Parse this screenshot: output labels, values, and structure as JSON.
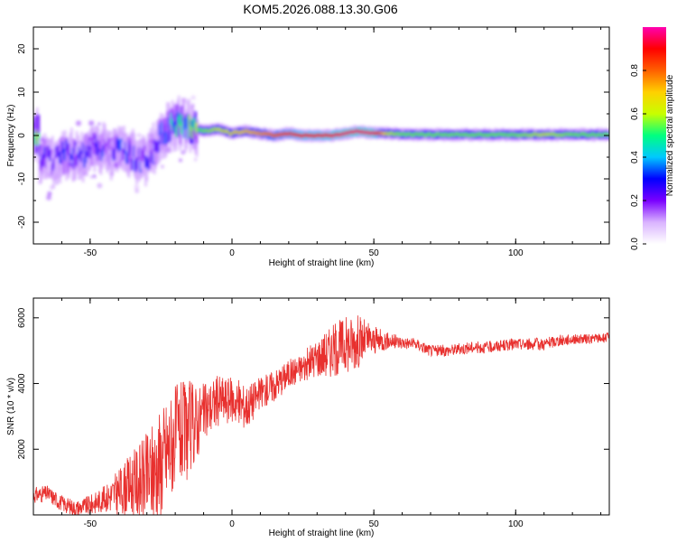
{
  "title": "KOM5.2026.088.13.30.G06",
  "colors": {
    "snr_line": "#e8302e",
    "axis": "#000000",
    "background": "#ffffff"
  },
  "chart_data": [
    {
      "type": "heatmap",
      "title": "KOM5.2026.088.13.30.G06",
      "xlabel": "Height of straight line (km)",
      "ylabel": "Frequency (Hz)",
      "xlim": [
        -70,
        133
      ],
      "ylim": [
        -25,
        25
      ],
      "xticks": [
        -50,
        0,
        50,
        100
      ],
      "yticks": [
        -20,
        -10,
        0,
        10,
        20
      ],
      "colorbar": {
        "label": "Normalized spectral amplitude",
        "range": [
          0,
          1
        ],
        "ticks": [
          0.0,
          0.2,
          0.4,
          0.6,
          0.8
        ],
        "colormap": [
          "#ffffff",
          "#d9b3ff",
          "#7a00ff",
          "#0000ff",
          "#00c8ff",
          "#00ff80",
          "#c8ff00",
          "#ffd000",
          "#ff6000",
          "#ff0000",
          "#ff00b0"
        ]
      },
      "ridge": {
        "height_km": [
          -68,
          -63,
          -58,
          -53,
          -48,
          -43,
          -38,
          -33,
          -29,
          -25,
          -20,
          -15,
          -10,
          -5,
          0,
          5,
          10,
          15,
          20,
          25,
          30,
          35,
          40,
          45,
          50,
          55,
          60,
          70,
          80,
          90,
          100,
          110,
          120,
          133
        ],
        "frequency_hz": [
          -5,
          -6,
          -4,
          -5,
          -2,
          -4,
          -3,
          -6,
          -5,
          0,
          3,
          2,
          1,
          1.5,
          0.5,
          1,
          0.5,
          0,
          0.5,
          0,
          0,
          0,
          0.5,
          1,
          0.5,
          0.5,
          0.3,
          0.2,
          0.2,
          0.2,
          0.2,
          0.2,
          0.2,
          0.2
        ],
        "amplitude": [
          0.3,
          0.25,
          0.3,
          0.28,
          0.3,
          0.25,
          0.3,
          0.28,
          0.25,
          0.3,
          0.45,
          0.5,
          0.55,
          0.6,
          0.65,
          0.7,
          0.75,
          0.8,
          0.85,
          0.9,
          0.9,
          0.92,
          0.95,
          0.95,
          0.95,
          0.6,
          0.55,
          0.55,
          0.55,
          0.55,
          0.55,
          0.6,
          0.55,
          0.55
        ]
      }
    },
    {
      "type": "line",
      "xlabel": "Height of straight line (km)",
      "ylabel": "SNR (10 * v/v)",
      "xlim": [
        -70,
        133
      ],
      "ylim": [
        0,
        6600
      ],
      "xticks": [
        -50,
        0,
        50,
        100
      ],
      "yticks": [
        2000,
        4000,
        6000
      ],
      "series": [
        {
          "name": "SNR",
          "x": [
            -70,
            -65,
            -60,
            -55,
            -50,
            -45,
            -40,
            -35,
            -30,
            -25,
            -20,
            -15,
            -10,
            -5,
            0,
            5,
            10,
            15,
            20,
            25,
            30,
            35,
            40,
            45,
            50,
            55,
            60,
            65,
            70,
            75,
            80,
            85,
            90,
            95,
            100,
            105,
            110,
            115,
            120,
            125,
            133
          ],
          "y": [
            600,
            650,
            350,
            200,
            300,
            500,
            700,
            950,
            1100,
            1600,
            2400,
            2600,
            3100,
            3500,
            3500,
            3300,
            3700,
            3950,
            4300,
            4500,
            4800,
            5000,
            5200,
            5300,
            5300,
            5300,
            5250,
            5200,
            5000,
            5000,
            5050,
            5100,
            5100,
            5150,
            5200,
            5200,
            5200,
            5300,
            5350,
            5350,
            5400
          ],
          "noise": [
            250,
            250,
            250,
            250,
            300,
            400,
            700,
            1000,
            1400,
            1800,
            1600,
            1500,
            900,
            800,
            700,
            700,
            500,
            500,
            450,
            450,
            600,
            800,
            900,
            800,
            450,
            250,
            200,
            180,
            180,
            180,
            180,
            180,
            180,
            180,
            180,
            180,
            200,
            180,
            150,
            150,
            150
          ]
        }
      ]
    }
  ]
}
